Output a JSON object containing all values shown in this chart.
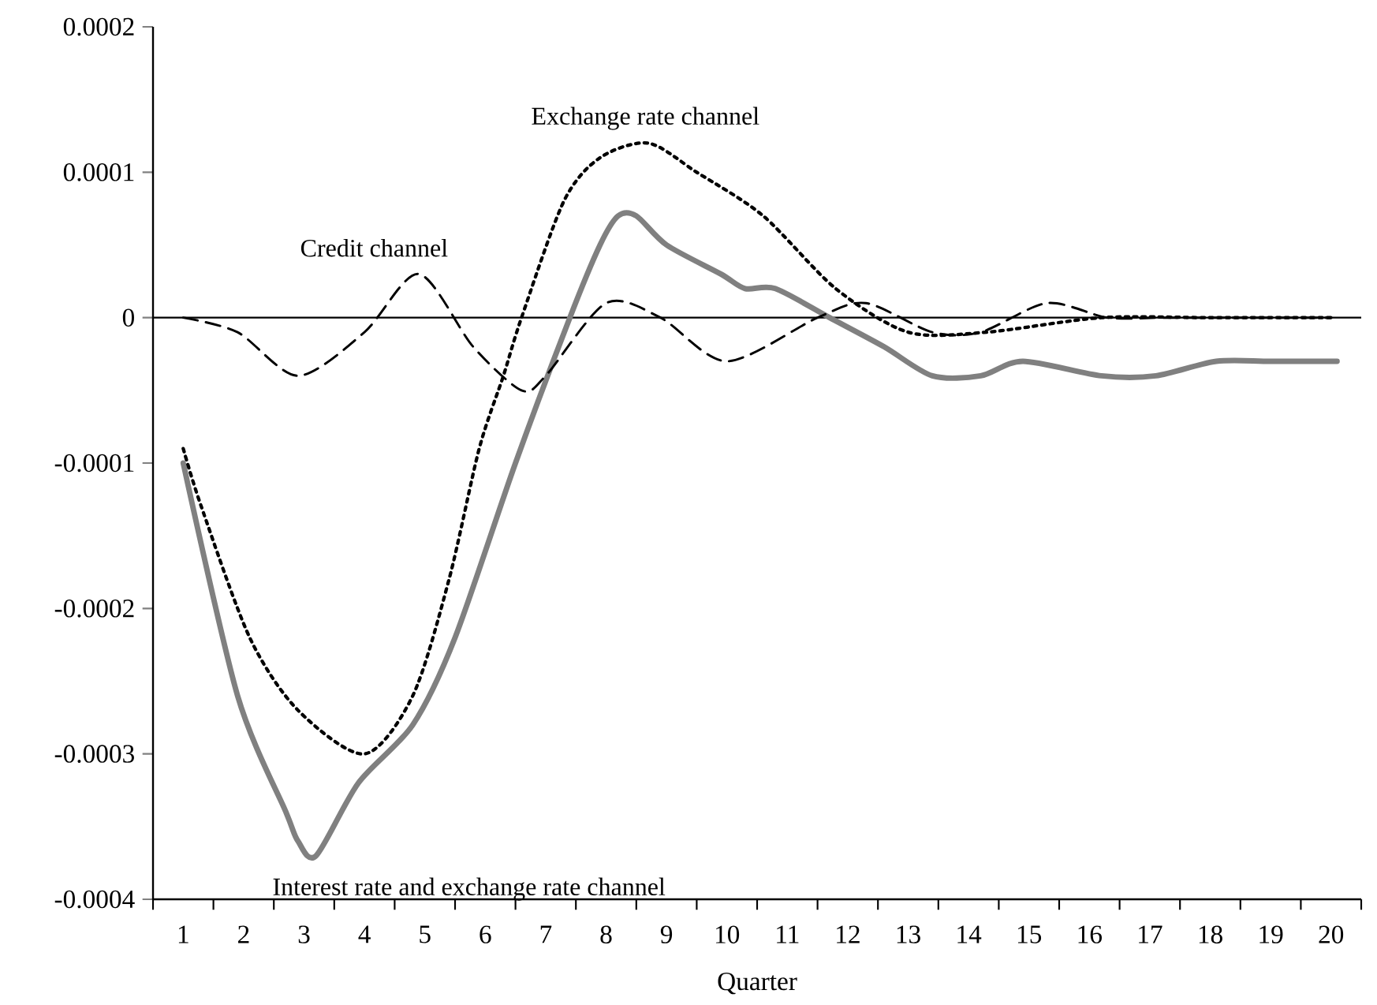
{
  "chart_data": {
    "type": "line",
    "xlabel": "Quarter",
    "xlim": [
      0.5,
      20.5
    ],
    "xticks": [
      1,
      2,
      3,
      4,
      5,
      6,
      7,
      8,
      9,
      10,
      11,
      12,
      13,
      14,
      15,
      16,
      17,
      18,
      19,
      20
    ],
    "ylim": [
      -0.0004,
      0.0002
    ],
    "yticks": [
      {
        "value": -0.0004,
        "label": "-0.0004"
      },
      {
        "value": -0.0003,
        "label": "-0.0003"
      },
      {
        "value": -0.0002,
        "label": "-0.0002"
      },
      {
        "value": -0.0001,
        "label": "-0.0001"
      },
      {
        "value": 0,
        "label": "0"
      },
      {
        "value": 0.0001,
        "label": "0.0001"
      },
      {
        "value": 0.0002,
        "label": "0.0002"
      }
    ],
    "ref_lines": [
      {
        "axis": "y",
        "value": 0,
        "color": "#000000",
        "line_style": "solid"
      }
    ],
    "legend": false,
    "series": [
      {
        "name": "Interest rate and exchange rate channel",
        "color": "#808080",
        "line_style": "solid",
        "x": [
          1,
          1.9,
          2.7,
          2.9,
          3.2,
          3.9,
          4.8,
          5.5,
          6.5,
          7.4,
          7.9,
          8.2,
          8.5,
          9.0,
          9.9,
          10.3,
          10.8,
          11.7,
          12.6,
          13.4,
          14.2,
          14.9,
          16.2,
          17.1,
          18.1,
          19.0,
          20.1
        ],
        "values": [
          -0.0001,
          -0.00026,
          -0.00034,
          -0.00036,
          -0.00037,
          -0.00032,
          -0.00028,
          -0.00022,
          -0.0001,
          0,
          5e-05,
          7e-05,
          7e-05,
          5e-05,
          3e-05,
          2e-05,
          2e-05,
          0.0,
          -2e-05,
          -4e-05,
          -4e-05,
          -3e-05,
          -4e-05,
          -4e-05,
          -3e-05,
          -3e-05,
          -3e-05
        ]
      },
      {
        "name": "Exchange rate channel",
        "color": "#000000",
        "line_style": "dotted",
        "x": [
          1,
          1.3,
          2.1,
          2.9,
          4.0,
          4.8,
          5.4,
          5.9,
          6.3,
          6.6,
          7.3,
          7.9,
          8.7,
          9.5,
          10.6,
          11.8,
          13.0,
          14.3,
          16.2,
          18.0,
          20.0
        ],
        "values": [
          -9e-05,
          -0.00013,
          -0.00022,
          -0.00027,
          -0.0003,
          -0.00026,
          -0.00018,
          -9e-05,
          -4e-05,
          0,
          8e-05,
          0.00011,
          0.00012,
          0.0001,
          7e-05,
          2e-05,
          -1e-05,
          -1e-05,
          0,
          0,
          0
        ]
      },
      {
        "name": "Credit channel",
        "color": "#000000",
        "line_style": "dashed",
        "x": [
          1,
          1.9,
          2.9,
          4.0,
          4.9,
          5.8,
          6.6,
          7.0,
          8.0,
          8.9,
          10.0,
          11.5,
          12.3,
          13.4,
          14.2,
          15.3,
          16.3,
          17.2,
          18.0,
          20.0
        ],
        "values": [
          0,
          -1e-05,
          -4e-05,
          -1e-05,
          3e-05,
          -2e-05,
          -5e-05,
          -4e-05,
          1e-05,
          0,
          -3e-05,
          0,
          1e-05,
          -1e-05,
          -1e-05,
          1e-05,
          0,
          0,
          0,
          0
        ]
      }
    ]
  }
}
